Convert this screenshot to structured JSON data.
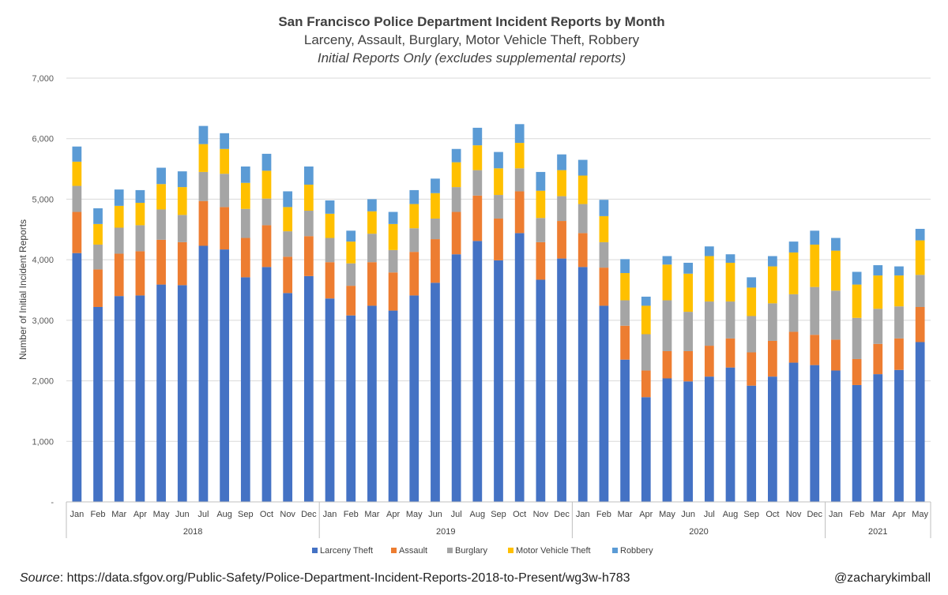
{
  "chart_data": {
    "type": "bar",
    "stacked": true,
    "title": "San Francisco Police Department Incident Reports by Month",
    "subtitle": "Larceny, Assault, Burglary, Motor Vehicle Theft, Robbery",
    "subtitle2": "Initial Reports Only (excludes supplemental reports)",
    "ylabel": "Number of Initial Incident Reports",
    "ylim": [
      0,
      7000
    ],
    "yticks": [
      0,
      1000,
      2000,
      3000,
      4000,
      5000,
      6000,
      7000
    ],
    "ytick_labels": [
      "-",
      "1,000",
      "2,000",
      "3,000",
      "4,000",
      "5,000",
      "6,000",
      "7,000"
    ],
    "grid": true,
    "legend_position": "bottom",
    "categories": [
      "Jan",
      "Feb",
      "Mar",
      "Apr",
      "May",
      "Jun",
      "Jul",
      "Aug",
      "Sep",
      "Oct",
      "Nov",
      "Dec",
      "Jan",
      "Feb",
      "Mar",
      "Apr",
      "May",
      "Jun",
      "Jul",
      "Aug",
      "Sep",
      "Oct",
      "Nov",
      "Dec",
      "Jan",
      "Feb",
      "Mar",
      "Apr",
      "May",
      "Jun",
      "Jul",
      "Aug",
      "Sep",
      "Oct",
      "Nov",
      "Dec",
      "Jan",
      "Feb",
      "Mar",
      "Apr",
      "May"
    ],
    "years": [
      {
        "label": "2018",
        "count": 12
      },
      {
        "label": "2019",
        "count": 12
      },
      {
        "label": "2020",
        "count": 12
      },
      {
        "label": "2021",
        "count": 5
      }
    ],
    "series": [
      {
        "name": "Larceny Theft",
        "color": "#4472C4",
        "values": [
          4110,
          3220,
          3400,
          3410,
          3590,
          3580,
          4230,
          4170,
          3710,
          3880,
          3450,
          3730,
          3360,
          3080,
          3240,
          3160,
          3410,
          3620,
          4090,
          4310,
          3990,
          4440,
          3670,
          4020,
          3880,
          3240,
          2350,
          1730,
          2040,
          1990,
          2070,
          2220,
          1920,
          2070,
          2300,
          2260,
          2170,
          1930,
          2110,
          2180,
          2640
        ]
      },
      {
        "name": "Assault",
        "color": "#ED7D31",
        "values": [
          680,
          620,
          700,
          730,
          740,
          710,
          740,
          700,
          650,
          690,
          600,
          660,
          600,
          490,
          720,
          630,
          720,
          720,
          700,
          750,
          690,
          690,
          620,
          620,
          560,
          630,
          560,
          440,
          450,
          500,
          510,
          480,
          550,
          590,
          510,
          500,
          510,
          430,
          500,
          520,
          580
        ]
      },
      {
        "name": "Burglary",
        "color": "#A5A5A5",
        "values": [
          430,
          410,
          430,
          430,
          500,
          450,
          480,
          550,
          480,
          440,
          420,
          420,
          400,
          370,
          470,
          370,
          390,
          340,
          410,
          420,
          390,
          380,
          400,
          410,
          480,
          420,
          420,
          600,
          840,
          650,
          730,
          610,
          600,
          620,
          620,
          790,
          810,
          680,
          580,
          530,
          530
        ]
      },
      {
        "name": "Motor Vehicle Theft",
        "color": "#FFC000",
        "values": [
          400,
          340,
          360,
          370,
          420,
          460,
          460,
          410,
          430,
          460,
          400,
          430,
          400,
          360,
          370,
          430,
          400,
          420,
          410,
          410,
          440,
          420,
          450,
          430,
          470,
          430,
          450,
          470,
          590,
          630,
          750,
          640,
          470,
          610,
          690,
          700,
          660,
          550,
          550,
          510,
          570
        ]
      },
      {
        "name": "Robbery",
        "color": "#5B9BD5",
        "values": [
          250,
          260,
          270,
          210,
          270,
          260,
          300,
          260,
          270,
          280,
          260,
          300,
          220,
          180,
          200,
          200,
          230,
          240,
          220,
          290,
          270,
          310,
          310,
          260,
          260,
          270,
          230,
          150,
          140,
          180,
          160,
          140,
          170,
          170,
          180,
          230,
          210,
          210,
          170,
          150,
          190
        ]
      }
    ]
  },
  "footer": {
    "source_label": "Source",
    "source_text": ": https://data.sfgov.org/Public-Safety/Police-Department-Incident-Reports-2018-to-Present/wg3w-h783",
    "handle": "@zacharykimball"
  }
}
